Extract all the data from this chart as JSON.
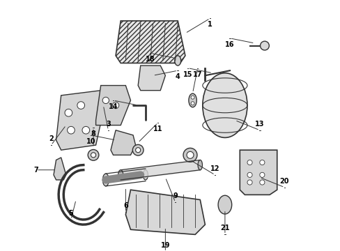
{
  "bg_color": "#ffffff",
  "line_color": "#333333",
  "fig_width": 4.89,
  "fig_height": 3.6,
  "dpi": 100,
  "part_positions": {
    "1": [
      0.56,
      0.87,
      0.05,
      0.03
    ],
    "2": [
      0.08,
      0.5,
      -0.03,
      -0.04
    ],
    "3": [
      0.23,
      0.58,
      0.01,
      -0.05
    ],
    "4": [
      0.43,
      0.7,
      0.05,
      0.01
    ],
    "5": [
      0.12,
      0.2,
      -0.01,
      -0.04
    ],
    "6": [
      0.32,
      0.25,
      0.0,
      -0.05
    ],
    "7": [
      0.04,
      0.32,
      -0.04,
      0.0
    ],
    "8": [
      0.19,
      0.41,
      0.0,
      0.04
    ],
    "9": [
      0.48,
      0.29,
      0.02,
      -0.05
    ],
    "10": [
      0.28,
      0.44,
      -0.05,
      0.01
    ],
    "11": [
      0.37,
      0.43,
      0.04,
      0.04
    ],
    "12": [
      0.58,
      0.36,
      0.05,
      -0.03
    ],
    "13": [
      0.76,
      0.52,
      0.05,
      -0.02
    ],
    "14": [
      0.37,
      0.58,
      -0.05,
      0.01
    ],
    "15": [
      0.67,
      0.71,
      -0.05,
      0.01
    ],
    "16": [
      0.84,
      0.83,
      -0.05,
      0.01
    ],
    "17": [
      0.59,
      0.63,
      0.01,
      0.05
    ],
    "18": [
      0.52,
      0.77,
      -0.05,
      0.01
    ],
    "19": [
      0.48,
      0.09,
      0.0,
      -0.05
    ],
    "20": [
      0.86,
      0.29,
      0.05,
      -0.02
    ],
    "21": [
      0.72,
      0.16,
      0.0,
      -0.05
    ]
  }
}
